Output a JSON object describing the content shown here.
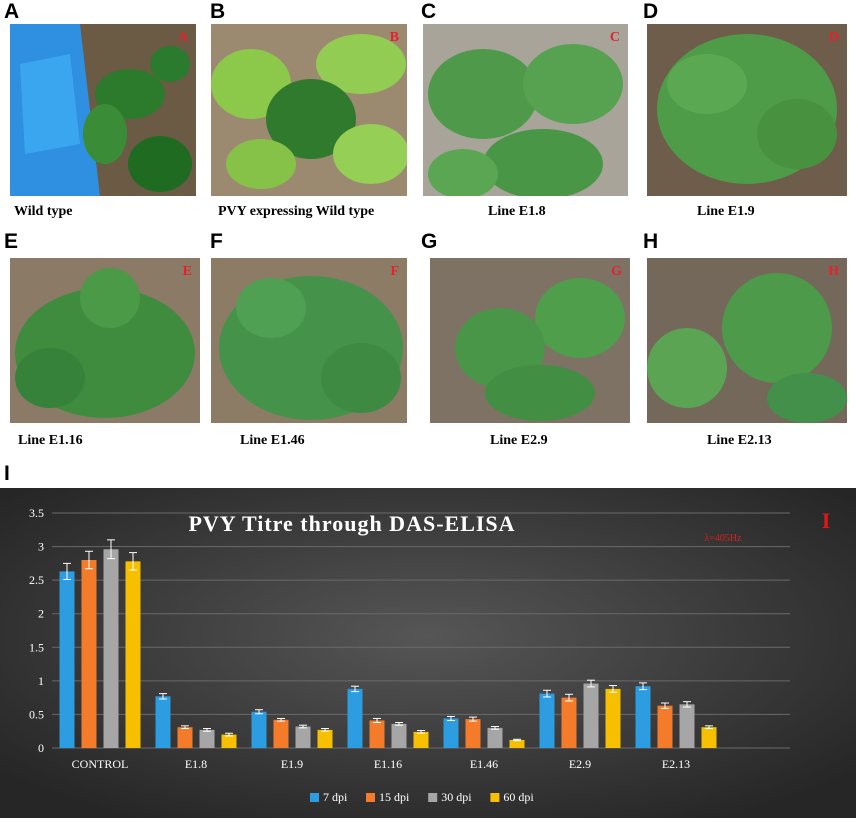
{
  "panels": [
    {
      "letter": "A",
      "tag": "A",
      "caption": "Wild type"
    },
    {
      "letter": "B",
      "tag": "B",
      "caption": "PVY expressing Wild type"
    },
    {
      "letter": "C",
      "tag": "C",
      "caption": "Line E1.8"
    },
    {
      "letter": "D",
      "tag": "D",
      "caption": "Line E1.9"
    },
    {
      "letter": "E",
      "tag": "E",
      "caption": "Line E1.16"
    },
    {
      "letter": "F",
      "tag": "F",
      "caption": "Line E1.46"
    },
    {
      "letter": "G",
      "tag": "G",
      "caption": "Line E2.9"
    },
    {
      "letter": "H",
      "tag": "H",
      "caption": "Line E2.13"
    }
  ],
  "chart_panel_letter": "I",
  "chart_data": {
    "type": "bar",
    "title": "PVY Titre through DAS-ELISA",
    "corner_tag": "I",
    "annotation": "λ=405Hz",
    "categories": [
      "CONTROL",
      "E1.8",
      "E1.9",
      "E1.16",
      "E1.46",
      "E2.9",
      "E2.13"
    ],
    "ylim": [
      0,
      3.5
    ],
    "yticks": [
      "0",
      "0.5",
      "1",
      "1.5",
      "2",
      "2.5",
      "3",
      "3.5"
    ],
    "legend_position": "bottom",
    "series": [
      {
        "name": "7 dpi",
        "color": "#2b9de0",
        "values": [
          2.63,
          0.77,
          0.54,
          0.88,
          0.44,
          0.81,
          0.92
        ],
        "errors": [
          0.12,
          0.04,
          0.03,
          0.04,
          0.03,
          0.05,
          0.05
        ]
      },
      {
        "name": "15 dpi",
        "color": "#f47b2a",
        "values": [
          2.8,
          0.31,
          0.42,
          0.41,
          0.43,
          0.75,
          0.63
        ],
        "errors": [
          0.13,
          0.02,
          0.02,
          0.03,
          0.03,
          0.05,
          0.04
        ]
      },
      {
        "name": "30 dpi",
        "color": "#a6a6a6",
        "values": [
          2.96,
          0.27,
          0.32,
          0.36,
          0.3,
          0.96,
          0.65
        ],
        "errors": [
          0.14,
          0.02,
          0.02,
          0.02,
          0.02,
          0.05,
          0.04
        ]
      },
      {
        "name": "60 dpi",
        "color": "#f6c000",
        "values": [
          2.78,
          0.2,
          0.27,
          0.24,
          0.12,
          0.88,
          0.31
        ],
        "errors": [
          0.13,
          0.02,
          0.02,
          0.02,
          0.01,
          0.05,
          0.02
        ]
      }
    ]
  }
}
